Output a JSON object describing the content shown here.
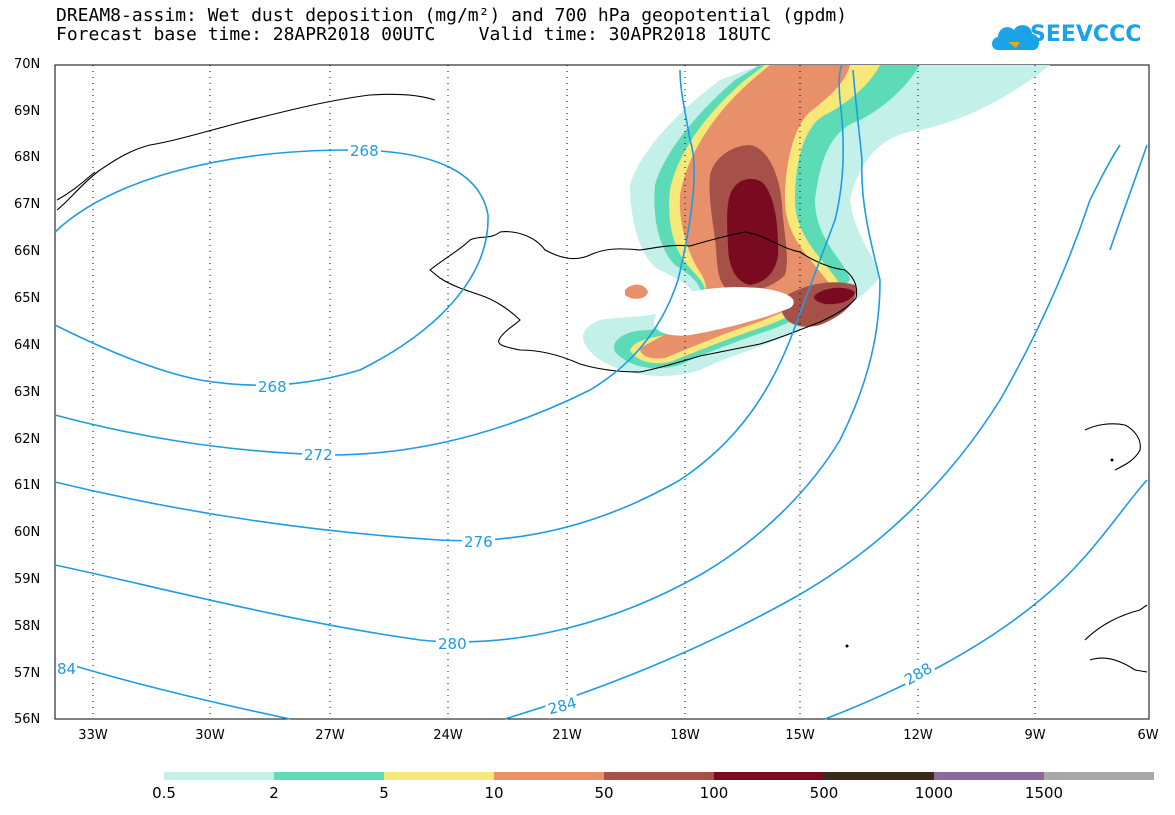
{
  "title": {
    "line1": "DREAM8-assim: Wet dust deposition (mg/m²) and 700 hPa geopotential (gpdm)",
    "line2": "Forecast base time: 28APR2018 00UTC    Valid time: 30APR2018 18UTC"
  },
  "logo": {
    "text": "SEEVCCC",
    "icon": "cloud-icon"
  },
  "map": {
    "region": "North Atlantic / Iceland",
    "lat_labels": [
      "70N",
      "69N",
      "68N",
      "67N",
      "66N",
      "65N",
      "64N",
      "63N",
      "62N",
      "61N",
      "60N",
      "59N",
      "58N",
      "57N",
      "56N"
    ],
    "lon_labels": [
      "33W",
      "30W",
      "27W",
      "24W",
      "21W",
      "18W",
      "15W",
      "12W",
      "9W",
      "6W"
    ],
    "contour_color": "#1e9be6",
    "contour_labels": [
      "268",
      "268",
      "272",
      "276",
      "280",
      "284",
      "288",
      "84"
    ],
    "grid": "dotted"
  },
  "colorbar": {
    "labels": [
      "0.5",
      "2",
      "5",
      "10",
      "50",
      "100",
      "500",
      "1000",
      "1500"
    ],
    "colors": [
      "#c4f0ea",
      "#5ddbb6",
      "#f7e87a",
      "#e8906a",
      "#a55048",
      "#7a0a1f",
      "#3a2a1a",
      "#8e6a9c",
      "#a8a8a8"
    ]
  }
}
